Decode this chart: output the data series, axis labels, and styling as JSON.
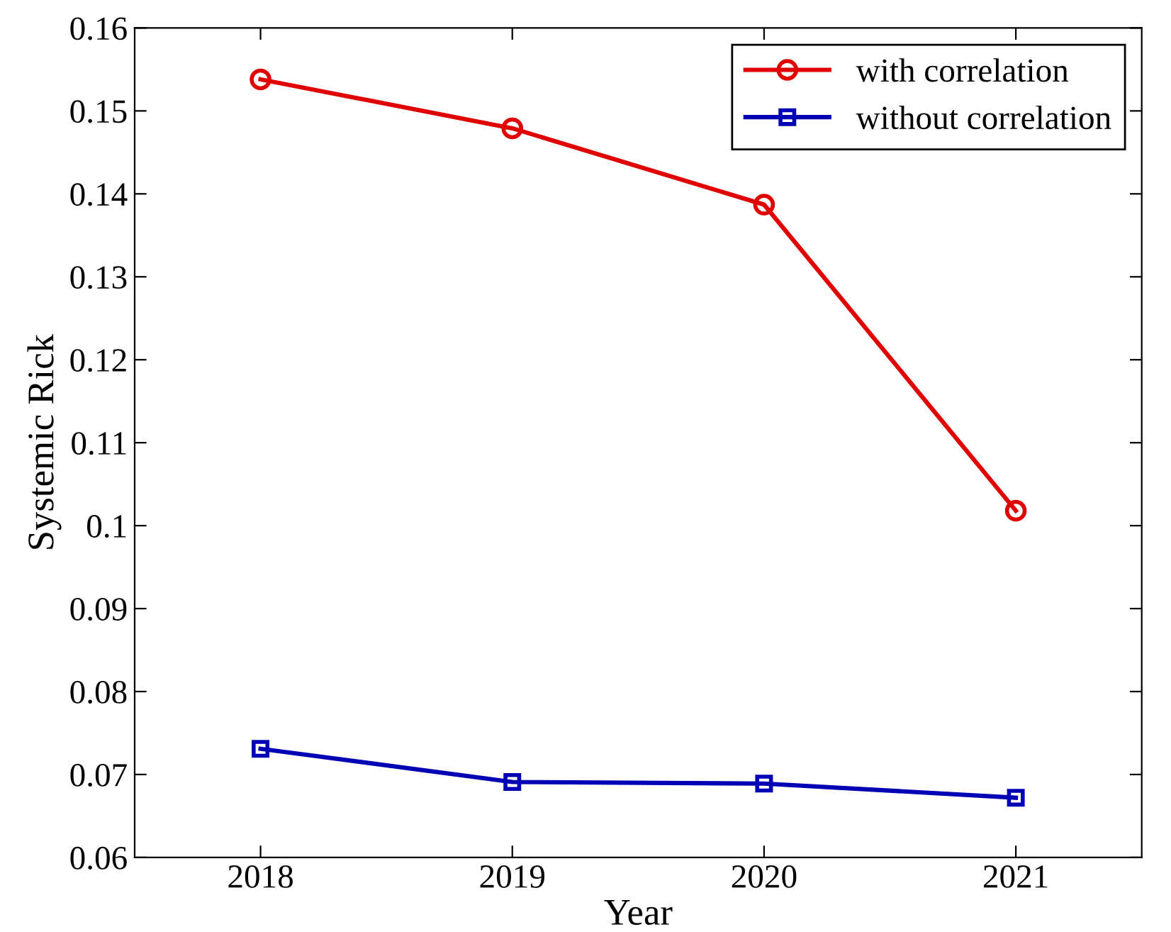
{
  "chart_data": {
    "type": "line",
    "xlabel": "Year",
    "ylabel": "Systemic Rick",
    "x": [
      2018,
      2019,
      2020,
      2021
    ],
    "series": [
      {
        "name": "with correlation",
        "color": "#e00000",
        "marker": "circle",
        "values": [
          0.1538,
          0.1479,
          0.1387,
          0.1018
        ]
      },
      {
        "name": "without correlation",
        "color": "#0000b4",
        "marker": "square",
        "values": [
          0.0731,
          0.0691,
          0.0689,
          0.0672
        ]
      }
    ],
    "xlim": [
      2017.5,
      2021.5
    ],
    "xticks": [
      2018,
      2019,
      2020,
      2021
    ],
    "ylim": [
      0.06,
      0.16
    ],
    "yticks": [
      0.06,
      0.07,
      0.08,
      0.09,
      0.1,
      0.11,
      0.12,
      0.13,
      0.14,
      0.15,
      0.16
    ],
    "legend": "top right",
    "grid": false
  }
}
